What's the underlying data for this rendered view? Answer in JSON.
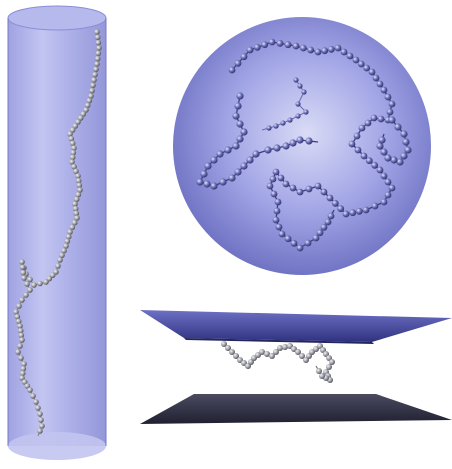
{
  "figure": {
    "panels": [
      {
        "id": "cylinder",
        "shape": "cylinder",
        "contains": "polymer-chain"
      },
      {
        "id": "sphere",
        "shape": "sphere",
        "contains": "polymer-chain"
      },
      {
        "id": "slit",
        "shape": "parallel-plates",
        "contains": "polymer-chain"
      }
    ],
    "colors": {
      "container_fill": "#9b9fe3",
      "container_edge": "#7478c8",
      "sphere_center": "#d9dbf6",
      "sphere_edge": "#7074c4",
      "plate_top": "#3a3c8c",
      "plate_bottom": "#2a2c3c",
      "bead_light": "#f2f2f6",
      "bead_gray": "#8e8e96",
      "bead_dark": "#4a4a52",
      "bead_blue": "#5a5ea6",
      "bead_blue_dark": "#2c2e6a",
      "background": "#ffffff"
    }
  }
}
